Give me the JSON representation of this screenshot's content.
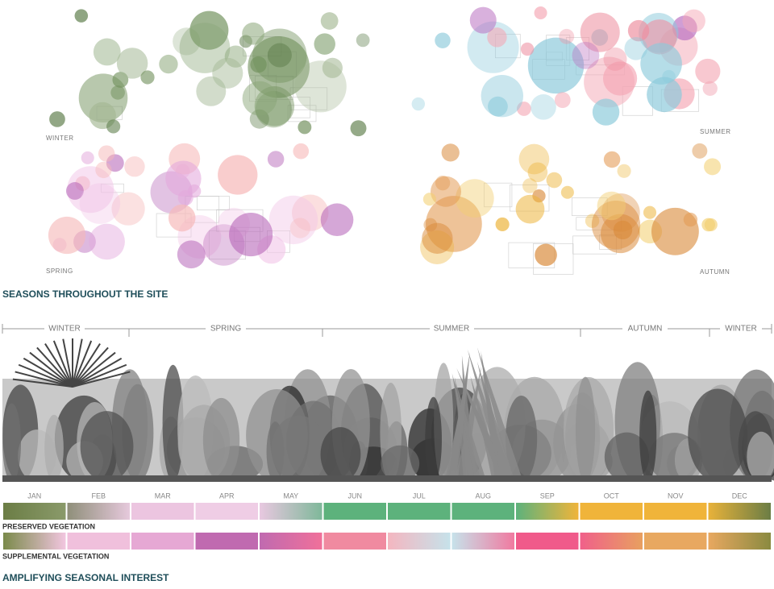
{
  "maps": [
    {
      "label": "WINTER"
    },
    {
      "label": "SUMMER"
    },
    {
      "label": "SPRING"
    },
    {
      "label": "AUTUMN"
    }
  ],
  "section1_title": "SEASONS THROUGHOUT THE SITE",
  "timeline": {
    "seasons": [
      "WINTER",
      "SPRING",
      "SUMMER",
      "AUTUMN",
      "WINTER"
    ],
    "months": [
      "JAN",
      "FEB",
      "MAR",
      "APR",
      "MAY",
      "JUN",
      "JUL",
      "AUG",
      "SEP",
      "OCT",
      "NOV",
      "DEC"
    ]
  },
  "bars": [
    {
      "label": "PRESERVED VEGETATION"
    },
    {
      "label": "SUPPLEMENTAL VEGETATION"
    }
  ],
  "section2_title": "AMPLIFYING SEASONAL INTEREST"
}
